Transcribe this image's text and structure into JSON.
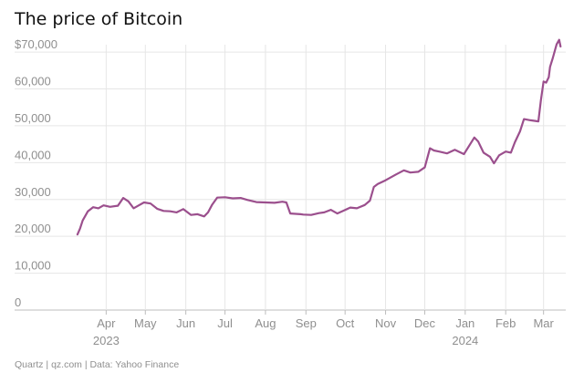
{
  "title": "The price of Bitcoin",
  "footer": "Quartz | qz.com | Data: Yahoo Finance",
  "colors": {
    "line": "#9b4f8d",
    "grid": "#e6e6e6",
    "tick_text": "#8f8f8f",
    "axis": "#bdbdbd"
  },
  "chart_data": {
    "type": "line",
    "title": "The price of Bitcoin",
    "xlabel": "",
    "ylabel": "",
    "ylim": [
      0,
      72000
    ],
    "y_ticks": [
      0,
      10000,
      20000,
      30000,
      40000,
      50000,
      60000,
      70000
    ],
    "y_tick_labels": [
      "0",
      "10,000",
      "20,000",
      "30,000",
      "40,000",
      "50,000",
      "60,000",
      "$70,000"
    ],
    "x_range": [
      "2023-03-01",
      "2024-03-18"
    ],
    "x_ticks": [
      {
        "date": "2023-04-01",
        "label": "Apr",
        "year": "2023"
      },
      {
        "date": "2023-05-01",
        "label": "May",
        "year": ""
      },
      {
        "date": "2023-06-01",
        "label": "Jun",
        "year": ""
      },
      {
        "date": "2023-07-01",
        "label": "Jul",
        "year": ""
      },
      {
        "date": "2023-08-01",
        "label": "Aug",
        "year": ""
      },
      {
        "date": "2023-09-01",
        "label": "Sep",
        "year": ""
      },
      {
        "date": "2023-10-01",
        "label": "Oct",
        "year": ""
      },
      {
        "date": "2023-11-01",
        "label": "Nov",
        "year": ""
      },
      {
        "date": "2023-12-01",
        "label": "Dec",
        "year": ""
      },
      {
        "date": "2024-01-01",
        "label": "Jan",
        "year": "2024"
      },
      {
        "date": "2024-02-01",
        "label": "Feb",
        "year": ""
      },
      {
        "date": "2024-03-01",
        "label": "Mar",
        "year": ""
      }
    ],
    "grid": true,
    "legend": "none",
    "series": [
      {
        "x": [
          "2023-03-10",
          "2023-03-12",
          "2023-03-14",
          "2023-03-18",
          "2023-03-22",
          "2023-03-26",
          "2023-03-30",
          "2023-04-04",
          "2023-04-10",
          "2023-04-14",
          "2023-04-18",
          "2023-04-22",
          "2023-04-26",
          "2023-04-30",
          "2023-05-05",
          "2023-05-10",
          "2023-05-15",
          "2023-05-20",
          "2023-05-25",
          "2023-05-30",
          "2023-06-05",
          "2023-06-10",
          "2023-06-15",
          "2023-06-18",
          "2023-06-21",
          "2023-06-25",
          "2023-07-01",
          "2023-07-07",
          "2023-07-13",
          "2023-07-18",
          "2023-07-25",
          "2023-08-01",
          "2023-08-08",
          "2023-08-14",
          "2023-08-17",
          "2023-08-20",
          "2023-08-28",
          "2023-08-30",
          "2023-09-05",
          "2023-09-11",
          "2023-09-15",
          "2023-09-20",
          "2023-09-25",
          "2023-09-30",
          "2023-10-05",
          "2023-10-10",
          "2023-10-16",
          "2023-10-20",
          "2023-10-23",
          "2023-10-26",
          "2023-11-01",
          "2023-11-09",
          "2023-11-15",
          "2023-11-20",
          "2023-11-26",
          "2023-12-01",
          "2023-12-05",
          "2023-12-08",
          "2023-12-12",
          "2023-12-18",
          "2023-12-24",
          "2023-12-31",
          "2024-01-08",
          "2024-01-11",
          "2024-01-15",
          "2024-01-20",
          "2024-01-23",
          "2024-01-27",
          "2024-02-01",
          "2024-02-05",
          "2024-02-08",
          "2024-02-12",
          "2024-02-15",
          "2024-02-20",
          "2024-02-26",
          "2024-02-28",
          "2024-03-01",
          "2024-03-03",
          "2024-03-05",
          "2024-03-06",
          "2024-03-08",
          "2024-03-11",
          "2024-03-13",
          "2024-03-14"
        ],
        "values": [
          20500,
          22100,
          24300,
          26800,
          27900,
          27600,
          28400,
          28000,
          28300,
          30400,
          29500,
          27600,
          28400,
          29200,
          28900,
          27500,
          26900,
          26800,
          26500,
          27400,
          25800,
          26000,
          25400,
          26500,
          28500,
          30500,
          30600,
          30300,
          30400,
          29900,
          29300,
          29200,
          29100,
          29400,
          29200,
          26200,
          26000,
          25900,
          25800,
          26300,
          26500,
          27200,
          26200,
          27000,
          27800,
          27600,
          28500,
          29700,
          33400,
          34200,
          35200,
          36800,
          37900,
          37300,
          37500,
          38700,
          43900,
          43300,
          43000,
          42500,
          43500,
          42300,
          46800,
          45700,
          42700,
          41600,
          39800,
          42000,
          43000,
          42700,
          45500,
          48500,
          51800,
          51500,
          51200,
          57000,
          62000,
          61700,
          63200,
          66000,
          68300,
          72100,
          73300,
          71500
        ]
      }
    ]
  }
}
